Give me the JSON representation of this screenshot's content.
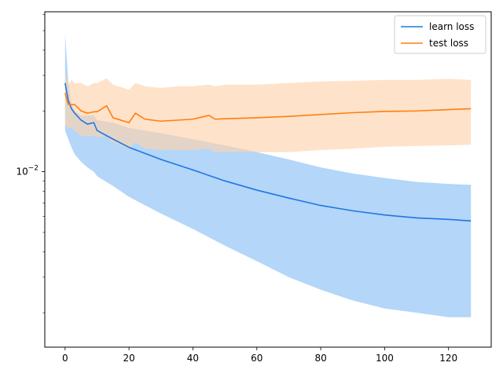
{
  "chart_data": {
    "type": "line",
    "title": "",
    "xlabel": "",
    "ylabel": "",
    "y_scale": "log",
    "xlim": [
      -6.35,
      133.35
    ],
    "ylim": [
      0.00135,
      0.062
    ],
    "x_ticks": [
      0,
      20,
      40,
      60,
      80,
      100,
      120
    ],
    "x_tick_labels": [
      "0",
      "20",
      "40",
      "60",
      "80",
      "100",
      "120"
    ],
    "y_tick_major": [
      0.01
    ],
    "y_tick_labels": [
      {
        "base": "10",
        "exp": "−2"
      }
    ],
    "y_tick_minor": [
      0.002,
      0.003,
      0.004,
      0.005,
      0.006,
      0.007,
      0.008,
      0.009,
      0.02,
      0.03,
      0.04,
      0.05,
      0.06
    ],
    "grid": false,
    "legend_position": "upper right",
    "series": [
      {
        "name": "learn loss",
        "color": "#1f77e0",
        "fill_color": "#99c8f7",
        "x": [
          0,
          1,
          2,
          3,
          5,
          7,
          9,
          10,
          15,
          20,
          30,
          40,
          50,
          60,
          70,
          80,
          90,
          100,
          110,
          120,
          127
        ],
        "mean": [
          0.0275,
          0.0225,
          0.0205,
          0.0195,
          0.018,
          0.0172,
          0.0175,
          0.016,
          0.0145,
          0.0132,
          0.0115,
          0.0102,
          0.009,
          0.0081,
          0.0074,
          0.0068,
          0.0064,
          0.0061,
          0.0059,
          0.0058,
          0.0057
        ],
        "upper": [
          0.048,
          0.028,
          0.022,
          0.02,
          0.019,
          0.019,
          0.019,
          0.018,
          0.0175,
          0.0165,
          0.0155,
          0.0145,
          0.0135,
          0.0125,
          0.0115,
          0.0105,
          0.0098,
          0.0093,
          0.0089,
          0.0087,
          0.0086
        ],
        "lower": [
          0.016,
          0.0145,
          0.0132,
          0.0122,
          0.0112,
          0.0105,
          0.01,
          0.0095,
          0.0085,
          0.0075,
          0.0062,
          0.0052,
          0.0043,
          0.0036,
          0.003,
          0.0026,
          0.0023,
          0.0021,
          0.002,
          0.0019,
          0.0019
        ]
      },
      {
        "name": "test loss",
        "color": "#ff7f0e",
        "fill_color": "#ffd3ad",
        "x": [
          0,
          1,
          2,
          3,
          5,
          7,
          9,
          10,
          13,
          15,
          20,
          22,
          25,
          30,
          35,
          40,
          45,
          47,
          50,
          60,
          70,
          80,
          90,
          100,
          110,
          120,
          127
        ],
        "mean": [
          0.0245,
          0.0215,
          0.0215,
          0.0215,
          0.02,
          0.0195,
          0.0198,
          0.0198,
          0.0212,
          0.0185,
          0.0175,
          0.0195,
          0.0182,
          0.0178,
          0.018,
          0.0182,
          0.019,
          0.0182,
          0.0183,
          0.0185,
          0.0188,
          0.0192,
          0.0196,
          0.0199,
          0.02,
          0.0203,
          0.0205
        ],
        "upper": [
          0.031,
          0.027,
          0.0285,
          0.0275,
          0.0275,
          0.0265,
          0.0275,
          0.0275,
          0.029,
          0.027,
          0.0255,
          0.0275,
          0.0265,
          0.026,
          0.0265,
          0.0265,
          0.027,
          0.0265,
          0.027,
          0.027,
          0.0275,
          0.028,
          0.0282,
          0.0285,
          0.0285,
          0.0288,
          0.0285
        ],
        "lower": [
          0.017,
          0.0165,
          0.0165,
          0.016,
          0.015,
          0.015,
          0.015,
          0.0148,
          0.015,
          0.014,
          0.013,
          0.014,
          0.013,
          0.0128,
          0.0128,
          0.0128,
          0.013,
          0.0125,
          0.0125,
          0.0125,
          0.0125,
          0.0128,
          0.013,
          0.0133,
          0.0134,
          0.0135,
          0.0136
        ]
      }
    ]
  }
}
